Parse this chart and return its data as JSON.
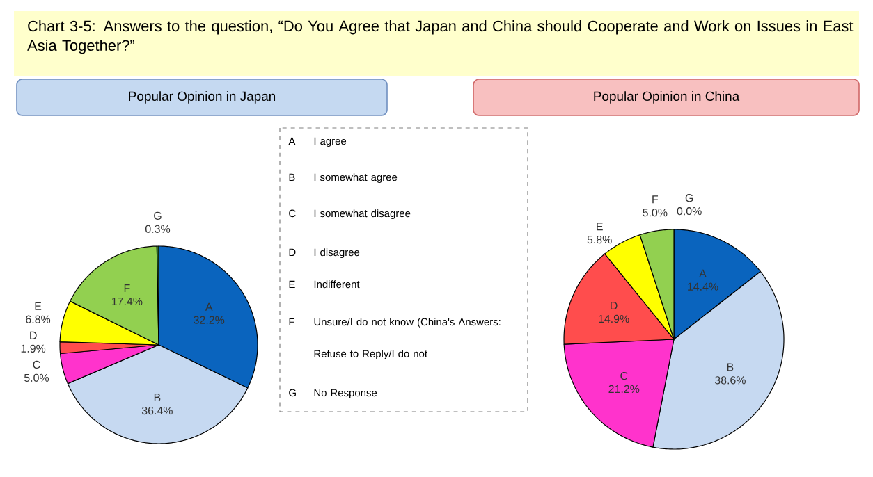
{
  "chart_data": [
    {
      "type": "other",
      "title": "Chart 3-5: Answers to the question, “Do You Agree that Japan and China should Cooperate and Work on Issues in East Asia Together?”",
      "annotations": [
        "A",
        "I agree",
        "B",
        "I somewhat agree",
        "C",
        "I somewhat disagree",
        "D",
        "I disagree",
        "E",
        "Indifferent",
        "F",
        "Unsure/I do not know (China's Answers: Refuse to Reply/I do not",
        "G",
        "No Response"
      ]
    },
    {
      "type": "pie",
      "title": "Popular Opinion in Japan",
      "categories": [
        "A",
        "B",
        "C",
        "D",
        "E",
        "F",
        "G"
      ],
      "values": [
        32.2,
        36.4,
        5.0,
        1.9,
        6.8,
        17.4,
        0.3
      ],
      "value_labels": [
        "32.2%",
        "36.4%",
        "5.0%",
        "1.9%",
        "6.8%",
        "17.4%",
        "0.3%"
      ],
      "colors": [
        "#0a64be",
        "#c6d9f1",
        "#ff33cc",
        "#ff4d4d",
        "#ffff00",
        "#92d050",
        "#2e6b2e"
      ]
    },
    {
      "type": "pie",
      "title": "Popular Opinion in China",
      "categories": [
        "A",
        "B",
        "C",
        "D",
        "E",
        "F",
        "G"
      ],
      "values": [
        14.4,
        38.6,
        21.2,
        14.9,
        5.8,
        5.0,
        0.0
      ],
      "value_labels": [
        "14.4%",
        "38.6%",
        "21.2%",
        "14.9%",
        "5.8%",
        "5.0%",
        "0.0%"
      ],
      "colors": [
        "#0a64be",
        "#c6d9f1",
        "#ff33cc",
        "#ff4d4d",
        "#ffff00",
        "#92d050",
        "#2e6b2e"
      ]
    }
  ]
}
